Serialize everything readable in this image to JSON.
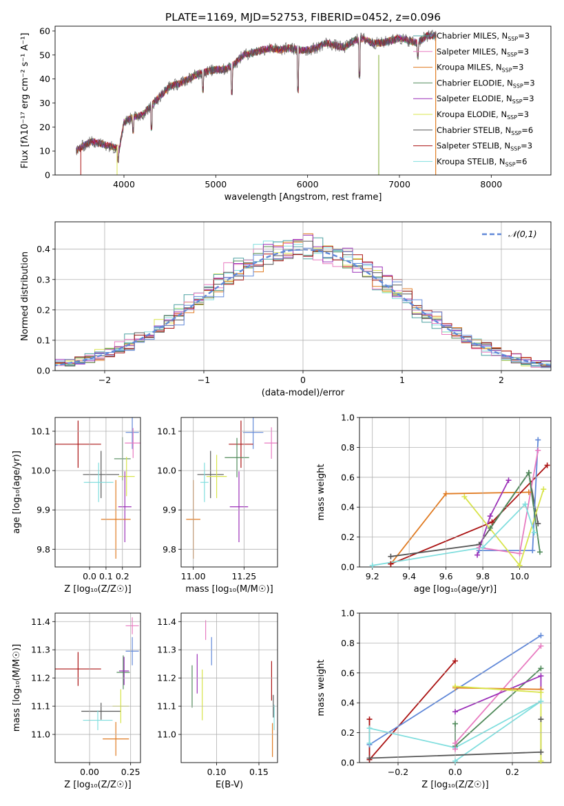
{
  "figure": {
    "title": "PLATE=1169, MJD=52753, FIBERID=0452, z=0.096"
  },
  "colors": {
    "chabrier_miles": "#4aa0a0",
    "salpeter_miles": "#e87ac0",
    "kroupa_miles": "#e07a20",
    "chabrier_elodie": "#4f8a5a",
    "salpeter_elodie": "#9b30b8",
    "kroupa_elodie": "#d8e44a",
    "chabrier_stelib": "#555555",
    "salpeter_stelib": "#aa1111",
    "kroupa_stelib": "#80dede",
    "blue": "#6088d8",
    "grid": "#b0b0b0"
  },
  "chart_data": [
    {
      "id": "spectrum",
      "type": "line",
      "title": "PLATE=1169, MJD=52753, FIBERID=0452, z=0.096",
      "xlabel": "wavelength [Angstrom, rest frame]",
      "ylabel": "Flux [fλ10⁻¹⁷ erg cm⁻² s⁻¹ A⁻¹]",
      "xlim": [
        3250,
        8650
      ],
      "ylim": [
        0,
        62
      ],
      "xticks": [
        "4000",
        "5000",
        "6000",
        "7000",
        "8000"
      ],
      "yticks": [
        "0",
        "10",
        "20",
        "30",
        "40",
        "50",
        "60"
      ],
      "grid": false,
      "legend_position": "top-right",
      "legend": [
        "Chabrier MILES, N_SSP=3",
        "Salpeter MILES, N_SSP=3",
        "Kroupa MILES, N_SSP=3",
        "Chabrier ELODIE, N_SSP=3",
        "Salpeter ELODIE, N_SSP=3",
        "Kroupa ELODIE, N_SSP=3",
        "Chabrier STELIB, N_SSP=6",
        "Salpeter STELIB, N_SSP=3",
        "Kroupa STELIB, N_SSP=6"
      ],
      "legend_colors": [
        "#4aa0a0",
        "#e87ac0",
        "#e07a20",
        "#4f8a5a",
        "#9b30b8",
        "#d8e44a",
        "#555555",
        "#aa1111",
        "#80dede"
      ],
      "continuum": {
        "x": [
          3480,
          3550,
          3650,
          3750,
          3850,
          3950,
          4000,
          4100,
          4200,
          4300,
          4400,
          4500,
          4600,
          4700,
          4800,
          4900,
          5000,
          5100,
          5200,
          5300,
          5400,
          5500,
          5600,
          5700,
          5800,
          5900,
          6000,
          6100,
          6200,
          6300,
          6400,
          6500,
          6600,
          6700,
          6800,
          6900,
          7000,
          7100,
          7200,
          7300,
          7400
        ],
        "y": [
          10,
          12,
          14,
          13,
          12,
          11,
          22,
          24,
          25,
          29,
          33,
          37,
          38,
          40,
          42,
          43,
          44,
          44,
          46,
          50,
          51,
          52,
          53,
          52,
          53,
          52,
          52,
          53,
          55,
          54,
          53,
          56,
          57,
          55,
          55,
          56,
          57,
          56,
          55,
          58,
          58
        ]
      },
      "dips": [
        {
          "x": 3933,
          "y": 5
        },
        {
          "x": 4102,
          "y": 17
        },
        {
          "x": 4300,
          "y": 18
        },
        {
          "x": 4861,
          "y": 34
        },
        {
          "x": 5175,
          "y": 33
        },
        {
          "x": 5894,
          "y": 34
        },
        {
          "x": 6563,
          "y": 40
        },
        {
          "x": 7200,
          "y": 48
        }
      ]
    },
    {
      "id": "residuals",
      "type": "histogram",
      "xlabel": "(data-model)/error",
      "ylabel": "Normed distribution",
      "xlim": [
        -2.5,
        2.5
      ],
      "ylim": [
        0,
        0.49
      ],
      "xticks": [
        "−2",
        "−1",
        "0",
        "1",
        "2"
      ],
      "yticks": [
        "0.0",
        "0.1",
        "0.2",
        "0.3",
        "0.4"
      ],
      "grid": true,
      "legend_position": "top-right",
      "legend": [
        "𝒩(0,1)"
      ],
      "bin_width": 0.1,
      "reference": {
        "name": "𝒩(0,1)",
        "mean": 0,
        "sigma": 1
      }
    },
    {
      "id": "age_vs_Z",
      "type": "scatter",
      "xlabel": "Z [log₁₀(Z/Z☉)]",
      "ylabel": "age [log₁₀(age/yr)]",
      "xlim": [
        -0.21,
        0.31
      ],
      "ylim": [
        9.755,
        10.135
      ],
      "xticks": [
        "0.0",
        "0.1",
        "0.2"
      ],
      "yticks": [
        "9.8",
        "9.9",
        "10.0",
        "10.1"
      ],
      "grid": true,
      "points": [
        {
          "c": "blue",
          "x": 0.26,
          "y": 10.097,
          "ex": 0.04,
          "ey": 0.042
        },
        {
          "c": "salpeter_miles",
          "x": 0.265,
          "y": 10.07,
          "ex": 0.05,
          "ey": 0.038
        },
        {
          "c": "salpeter_stelib",
          "x": -0.07,
          "y": 10.067,
          "ex": 0.14,
          "ey": 0.06
        },
        {
          "c": "chabrier_elodie",
          "x": 0.2,
          "y": 10.03,
          "ex": 0.05,
          "ey": 0.055
        },
        {
          "c": "chabrier_stelib",
          "x": 0.07,
          "y": 9.99,
          "ex": 0.11,
          "ey": 0.06
        },
        {
          "c": "kroupa_elodie",
          "x": 0.225,
          "y": 9.985,
          "ex": 0.05,
          "ey": 0.05
        },
        {
          "c": "kroupa_stelib",
          "x": 0.055,
          "y": 9.97,
          "ex": 0.09,
          "ey": 0.05
        },
        {
          "c": "salpeter_elodie",
          "x": 0.215,
          "y": 9.908,
          "ex": 0.04,
          "ey": 0.09
        },
        {
          "c": "kroupa_miles",
          "x": 0.16,
          "y": 9.876,
          "ex": 0.09,
          "ey": 0.1
        }
      ]
    },
    {
      "id": "age_vs_mass",
      "type": "scatter",
      "xlabel": "mass [log₁₀(M/M☉)]",
      "ylabel": "",
      "xlim": [
        10.94,
        11.415
      ],
      "ylim": [
        9.755,
        10.135
      ],
      "xticks": [
        "11.00",
        "11.25"
      ],
      "yticks": [
        "9.8",
        "9.9",
        "10.0",
        "10.1"
      ],
      "grid": true,
      "points": [
        {
          "c": "blue",
          "x": 11.295,
          "y": 10.097,
          "ex": 0.05,
          "ey": 0.042
        },
        {
          "c": "salpeter_miles",
          "x": 11.385,
          "y": 10.07,
          "ex": 0.035,
          "ey": 0.04
        },
        {
          "c": "salpeter_stelib",
          "x": 11.235,
          "y": 10.067,
          "ex": 0.06,
          "ey": 0.06
        },
        {
          "c": "chabrier_elodie",
          "x": 11.215,
          "y": 10.033,
          "ex": 0.06,
          "ey": 0.05
        },
        {
          "c": "chabrier_stelib",
          "x": 11.085,
          "y": 9.99,
          "ex": 0.065,
          "ey": 0.06
        },
        {
          "c": "kroupa_elodie",
          "x": 11.115,
          "y": 9.985,
          "ex": 0.05,
          "ey": 0.055
        },
        {
          "c": "kroupa_stelib",
          "x": 11.055,
          "y": 9.97,
          "ex": 0.02,
          "ey": 0.05
        },
        {
          "c": "salpeter_elodie",
          "x": 11.225,
          "y": 9.908,
          "ex": 0.045,
          "ey": 0.09
        },
        {
          "c": "kroupa_miles",
          "x": 11.0,
          "y": 9.876,
          "ex": 0.035,
          "ey": 0.1
        }
      ]
    },
    {
      "id": "weight_vs_age",
      "type": "line",
      "xlabel": "age [log₁₀(age/yr)]",
      "ylabel": "mass weight",
      "xlim": [
        9.13,
        10.17
      ],
      "ylim": [
        0,
        1
      ],
      "xticks": [
        "9.2",
        "9.4",
        "9.6",
        "9.8",
        "10.0"
      ],
      "yticks": [
        "0.0",
        "0.2",
        "0.4",
        "0.6",
        "0.8",
        "1.0"
      ],
      "grid": true,
      "series": [
        {
          "c": "kroupa_miles",
          "x": [
            9.3,
            9.6,
            10.05
          ],
          "y": [
            0.02,
            0.49,
            0.5
          ]
        },
        {
          "c": "salpeter_stelib",
          "x": [
            9.3,
            9.85,
            10.15
          ],
          "y": [
            0.02,
            0.3,
            0.68
          ]
        },
        {
          "c": "chabrier_stelib",
          "x": [
            9.3,
            9.78,
            10.05,
            10.1
          ],
          "y": [
            0.07,
            0.15,
            0.63,
            0.29
          ]
        },
        {
          "c": "blue",
          "x": [
            9.78,
            10.07,
            10.1
          ],
          "y": [
            0.11,
            0.11,
            0.85
          ]
        },
        {
          "c": "salpeter_miles",
          "x": [
            9.78,
            10.0,
            10.1
          ],
          "y": [
            0.13,
            0.09,
            0.78
          ]
        },
        {
          "c": "salpeter_elodie",
          "x": [
            9.77,
            9.84,
            9.94
          ],
          "y": [
            0.08,
            0.34,
            0.58
          ]
        },
        {
          "c": "kroupa_elodie",
          "x": [
            9.7,
            10.0,
            10.13
          ],
          "y": [
            0.47,
            0.01,
            0.52
          ]
        },
        {
          "c": "chabrier_elodie",
          "x": [
            9.84,
            10.05,
            10.11
          ],
          "y": [
            0.26,
            0.63,
            0.1
          ]
        },
        {
          "c": "kroupa_stelib",
          "x": [
            9.2,
            9.8,
            10.03,
            10.08
          ],
          "y": [
            0.01,
            0.13,
            0.42,
            0.23
          ]
        }
      ]
    },
    {
      "id": "mass_vs_Z",
      "type": "scatter",
      "xlabel": "Z [log₁₀(Z/Z☉)]",
      "ylabel": "mass [log₁₀(M/M☉)]",
      "xlim": [
        -0.21,
        0.31
      ],
      "ylim": [
        10.9,
        11.43
      ],
      "xticks": [
        "0.00",
        "0.25"
      ],
      "yticks": [
        "11.0",
        "11.1",
        "11.2",
        "11.3",
        "11.4"
      ],
      "grid": true,
      "points": [
        {
          "c": "salpeter_miles",
          "x": 0.26,
          "y": 11.385,
          "ex": 0.04,
          "ey": 0.03
        },
        {
          "c": "blue",
          "x": 0.26,
          "y": 11.295,
          "ex": 0.04,
          "ey": 0.05
        },
        {
          "c": "salpeter_stelib",
          "x": -0.07,
          "y": 11.232,
          "ex": 0.14,
          "ey": 0.06
        },
        {
          "c": "chabrier_elodie",
          "x": 0.205,
          "y": 11.22,
          "ex": 0.04,
          "ey": 0.06
        },
        {
          "c": "salpeter_elodie",
          "x": 0.21,
          "y": 11.225,
          "ex": 0.03,
          "ey": 0.05
        },
        {
          "c": "chabrier_stelib",
          "x": 0.07,
          "y": 11.082,
          "ex": 0.12,
          "ey": 0.03
        },
        {
          "c": "kroupa_elodie",
          "x": 0.19,
          "y": 11.1,
          "ex": 0.05,
          "ey": 0.06
        },
        {
          "c": "kroupa_stelib",
          "x": 0.05,
          "y": 11.05,
          "ex": 0.09,
          "ey": 0.035
        },
        {
          "c": "kroupa_miles",
          "x": 0.16,
          "y": 10.984,
          "ex": 0.08,
          "ey": 0.06
        }
      ]
    },
    {
      "id": "mass_vs_ebv",
      "type": "scatter",
      "xlabel": "E(B-V)",
      "ylabel": "",
      "xlim": [
        0.058,
        0.172
      ],
      "ylim": [
        10.9,
        11.43
      ],
      "xticks": [
        "0.10",
        "0.15"
      ],
      "yticks": [
        "11.0",
        "11.1",
        "11.2",
        "11.3",
        "11.4"
      ],
      "grid": true,
      "points": [
        {
          "c": "salpeter_miles",
          "x": 0.087,
          "y": 11.37,
          "ex": 0,
          "ey": 0.035
        },
        {
          "c": "blue",
          "x": 0.094,
          "y": 11.295,
          "ex": 0,
          "ey": 0.05
        },
        {
          "c": "salpeter_elodie",
          "x": 0.077,
          "y": 11.215,
          "ex": 0,
          "ey": 0.07
        },
        {
          "c": "chabrier_elodie",
          "x": 0.071,
          "y": 11.17,
          "ex": 0,
          "ey": 0.075
        },
        {
          "c": "kroupa_elodie",
          "x": 0.083,
          "y": 11.14,
          "ex": 0,
          "ey": 0.09
        },
        {
          "c": "salpeter_stelib",
          "x": 0.165,
          "y": 11.19,
          "ex": 0,
          "ey": 0.07
        },
        {
          "c": "chabrier_stelib",
          "x": 0.167,
          "y": 11.1,
          "ex": 0,
          "ey": 0.04
        },
        {
          "c": "kroupa_stelib",
          "x": 0.168,
          "y": 11.06,
          "ex": 0,
          "ey": 0.045
        },
        {
          "c": "kroupa_miles",
          "x": 0.166,
          "y": 10.98,
          "ex": 0,
          "ey": 0.06
        }
      ]
    },
    {
      "id": "weight_vs_Z",
      "type": "line",
      "xlabel": "Z [log₁₀(Z/Z☉)]",
      "ylabel": "mass weight",
      "xlim": [
        -0.335,
        0.335
      ],
      "ylim": [
        0,
        1
      ],
      "xticks": [
        "−0.2",
        "0.0",
        "0.2"
      ],
      "yticks": [
        "0.0",
        "0.2",
        "0.4",
        "0.6",
        "0.8",
        "1.0"
      ],
      "grid": true,
      "series": [
        {
          "c": "salpeter_stelib",
          "x": [
            -0.3,
            -0.3,
            0.0
          ],
          "y": [
            0.29,
            0.02,
            0.68
          ]
        },
        {
          "c": "blue",
          "x": [
            -0.3,
            0.3
          ],
          "y": [
            0.12,
            0.85
          ]
        },
        {
          "c": "kroupa_stelib",
          "x": [
            -0.3,
            -0.3,
            0.0,
            0.3,
            0.0
          ],
          "y": [
            0.13,
            0.23,
            0.1,
            0.41,
            0.01
          ]
        },
        {
          "c": "chabrier_stelib",
          "x": [
            -0.3,
            0.3,
            0.3
          ],
          "y": [
            0.03,
            0.07,
            0.29
          ]
        },
        {
          "c": "chabrier_elodie",
          "x": [
            0.0,
            0.0,
            0.3
          ],
          "y": [
            0.26,
            0.11,
            0.63
          ]
        },
        {
          "c": "salpeter_miles",
          "x": [
            0.0,
            0.0,
            0.3
          ],
          "y": [
            0.09,
            0.13,
            0.78
          ]
        },
        {
          "c": "salpeter_elodie",
          "x": [
            0.0,
            0.3,
            0.3
          ],
          "y": [
            0.34,
            0.58,
            0.49
          ]
        },
        {
          "c": "kroupa_miles",
          "x": [
            0.0,
            0.3
          ],
          "y": [
            0.5,
            0.49
          ]
        },
        {
          "c": "kroupa_elodie",
          "x": [
            0.0,
            0.3,
            0.3
          ],
          "y": [
            0.51,
            0.47,
            0.01
          ]
        }
      ]
    }
  ]
}
